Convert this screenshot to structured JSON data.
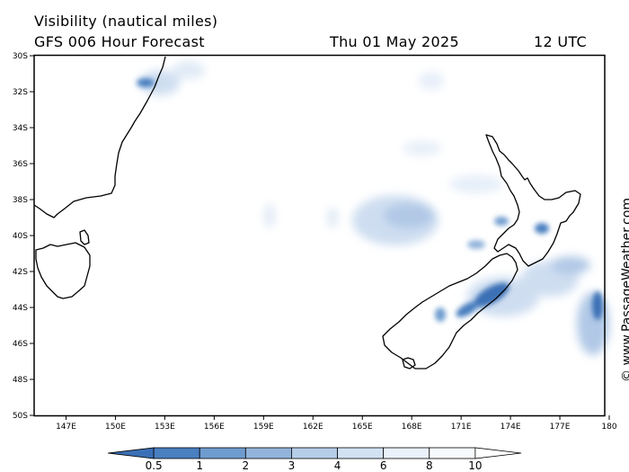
{
  "header": {
    "title": "Visibility (nautical miles)",
    "subtitle": "GFS 006 Hour Forecast",
    "date": "Thu 01 May 2025",
    "time": "12 UTC"
  },
  "credit": "© www.PassageWeather.com",
  "map": {
    "lat_ticks": [
      "30S",
      "32S",
      "34S",
      "36S",
      "38S",
      "40S",
      "42S",
      "44S",
      "46S",
      "48S",
      "50S"
    ],
    "lon_ticks": [
      "147E",
      "150E",
      "153E",
      "156E",
      "159E",
      "162E",
      "165E",
      "168E",
      "171E",
      "174E",
      "177E",
      "180"
    ]
  },
  "colorbar": {
    "labels": [
      "0.5",
      "1",
      "2",
      "3",
      "4",
      "6",
      "8",
      "10"
    ],
    "colors": [
      "#3b6fb5",
      "#4a7fc0",
      "#6f9ccf",
      "#92b4db",
      "#b6cde8",
      "#d3e2f3",
      "#eaf1fa",
      "#f7fafd",
      "#ffffff"
    ]
  }
}
